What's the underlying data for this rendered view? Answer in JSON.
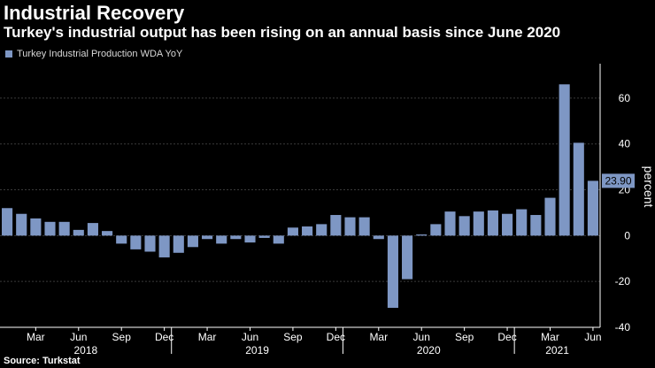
{
  "title": "Industrial Recovery",
  "subtitle": "Turkey's industrial output has been rising on an annual basis since June 2020",
  "legend_label": "Turkey Industrial Production WDA YoY",
  "source": "Source: Turkstat",
  "colors": {
    "bar": "#7e97c4",
    "background": "#000000",
    "grid": "#3a3a3a",
    "text": "#ffffff"
  },
  "chart_data": {
    "type": "bar",
    "title": "Industrial Recovery",
    "subtitle": "Turkey's industrial output has been rising on an annual basis since June 2020",
    "ylabel": "percent",
    "ylim": [
      -40,
      75
    ],
    "yticks": [
      -40,
      -20,
      0,
      20,
      40,
      60
    ],
    "grid": true,
    "legend_position": "top-left",
    "x_tick_labels": [
      "Mar",
      "Jun",
      "Sep",
      "Dec",
      "Mar",
      "Jun",
      "Sep",
      "Dec",
      "Mar",
      "Jun",
      "Sep",
      "Dec",
      "Mar",
      "Jun"
    ],
    "year_labels": [
      "2018",
      "2019",
      "2020",
      "2021"
    ],
    "last_value_label": "23.90",
    "series": [
      {
        "name": "Turkey Industrial Production WDA YoY",
        "categories": [
          "2018-01",
          "2018-02",
          "2018-03",
          "2018-04",
          "2018-05",
          "2018-06",
          "2018-07",
          "2018-08",
          "2018-09",
          "2018-10",
          "2018-11",
          "2018-12",
          "2019-01",
          "2019-02",
          "2019-03",
          "2019-04",
          "2019-05",
          "2019-06",
          "2019-07",
          "2019-08",
          "2019-09",
          "2019-10",
          "2019-11",
          "2019-12",
          "2020-01",
          "2020-02",
          "2020-03",
          "2020-04",
          "2020-05",
          "2020-06",
          "2020-07",
          "2020-08",
          "2020-09",
          "2020-10",
          "2020-11",
          "2020-12",
          "2021-01",
          "2021-02",
          "2021-03",
          "2021-04",
          "2021-05",
          "2021-06"
        ],
        "values": [
          12.0,
          9.5,
          7.5,
          6.0,
          6.0,
          2.5,
          5.5,
          2.0,
          -3.5,
          -6.0,
          -7.0,
          -9.5,
          -7.5,
          -5.0,
          -1.5,
          -3.5,
          -1.5,
          -3.0,
          -1.0,
          -3.5,
          3.5,
          4.0,
          5.0,
          9.0,
          8.0,
          8.0,
          -1.5,
          -31.5,
          -19.0,
          0.5,
          5.0,
          10.5,
          8.5,
          10.5,
          11.0,
          9.5,
          11.5,
          9.0,
          16.5,
          66.0,
          40.5,
          23.9
        ]
      }
    ]
  }
}
